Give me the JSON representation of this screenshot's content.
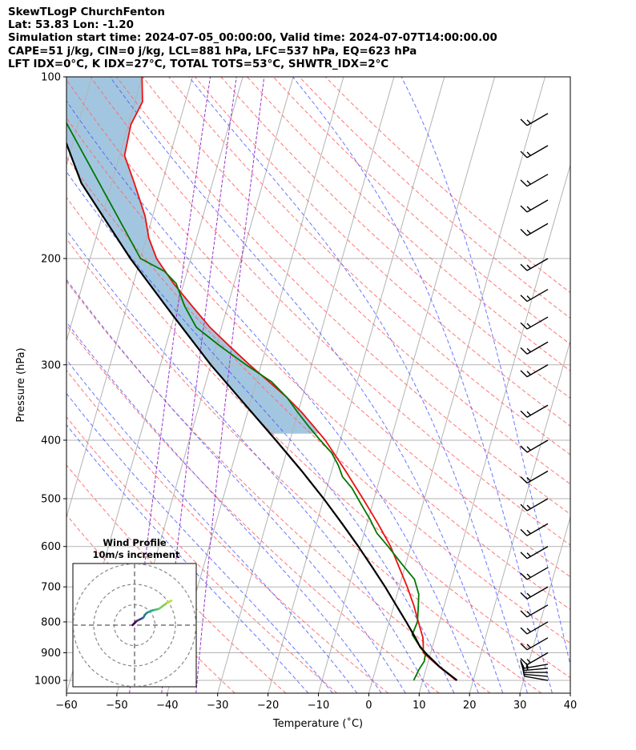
{
  "header": {
    "line1": "SkewTLogP ChurchFenton",
    "line2": "Lat: 53.83   Lon: -1.20",
    "line3": "Simulation start time: 2024-07-05_00:00:00, Valid time: 2024-07-07T14:00:00.00",
    "line4": "CAPE=51 j/kg, CIN=0 j/kg, LCL=881 hPa, LFC=537 hPa, EQ=623 hPa",
    "line5": "LFT IDX=0°C, K IDX=27°C, TOTAL TOTS=53°C, SHWTR_IDX=2°C"
  },
  "chart_data": {
    "type": "line",
    "title": "SkewTLogP ChurchFenton",
    "xlabel": "Temperature (˚C)",
    "ylabel": "Pressure (hPa)",
    "xlim": [
      -60,
      40
    ],
    "ylim": [
      1050,
      100
    ],
    "skew": 35,
    "xticks": [
      -60,
      -50,
      -40,
      -30,
      -20,
      -10,
      0,
      10,
      20,
      30,
      40
    ],
    "xtick_labels": [
      "−60",
      "−50",
      "−40",
      "−30",
      "−20",
      "−10",
      "0",
      "10",
      "20",
      "30",
      "40"
    ],
    "yticks": [
      1000,
      900,
      800,
      700,
      600,
      500,
      400,
      300,
      200,
      100
    ],
    "ytick_labels": [
      "1000",
      "900",
      "800",
      "700",
      "600",
      "500",
      "400",
      "300",
      "200",
      "100"
    ],
    "grid": true,
    "series": [
      {
        "name": "Temperature",
        "color": "#ee1111",
        "pressure": [
          1000,
          950,
          900,
          880,
          850,
          800,
          750,
          700,
          650,
          600,
          550,
          500,
          450,
          400,
          380,
          360,
          340,
          320,
          300,
          280,
          260,
          240,
          220,
          200,
          185,
          170,
          150,
          135,
          120,
          110,
          100
        ],
        "temperature": [
          16.6,
          12.5,
          8.5,
          8.2,
          7.6,
          5.8,
          3.9,
          1.6,
          -1.1,
          -4.0,
          -7.8,
          -12.2,
          -17.2,
          -23.0,
          -26.0,
          -29.2,
          -33.0,
          -37.5,
          -42.3,
          -47.2,
          -52.3,
          -57.0,
          -62.0,
          -66.8,
          -69.5,
          -71.5,
          -75.5,
          -79.0,
          -79.5,
          -78.5,
          -80.0
        ]
      },
      {
        "name": "Dewpoint",
        "color": "#007700",
        "pressure": [
          1000,
          960,
          930,
          900,
          870,
          840,
          800,
          760,
          720,
          680,
          640,
          600,
          570,
          540,
          510,
          480,
          460,
          440,
          420,
          400,
          380,
          360,
          340,
          320,
          300,
          280,
          260,
          240,
          220,
          210,
          200,
          100
        ],
        "temperature": [
          8.2,
          8.6,
          9.2,
          9.0,
          7.0,
          5.3,
          5.6,
          5.0,
          4.3,
          2.6,
          -0.9,
          -4.5,
          -7.5,
          -9.7,
          -12.3,
          -15.0,
          -17.5,
          -19.0,
          -21.0,
          -24.0,
          -27.0,
          -30.0,
          -33.0,
          -37.0,
          -43.0,
          -49.0,
          -55.0,
          -58.5,
          -61.5,
          -64.5,
          -70.0,
          -100.0
        ]
      },
      {
        "name": "Parcel",
        "color": "#000000",
        "pressure": [
          1000,
          950,
          900,
          881,
          850,
          800,
          750,
          700,
          650,
          600,
          550,
          500,
          450,
          400,
          350,
          300,
          250,
          200,
          150,
          100
        ],
        "temperature": [
          16.8,
          12.6,
          8.9,
          7.6,
          6.1,
          3.4,
          0.4,
          -2.8,
          -6.4,
          -10.4,
          -14.9,
          -20.0,
          -25.9,
          -32.8,
          -40.8,
          -50.0,
          -60.0,
          -72.0,
          -86.0,
          -100.0
        ]
      }
    ],
    "wind_barbs": {
      "pressure": [
        1000,
        985,
        970,
        955,
        940,
        900,
        850,
        800,
        750,
        700,
        650,
        600,
        550,
        500,
        450,
        400,
        350,
        300,
        275,
        250,
        225,
        200,
        175,
        160,
        145,
        130,
        115
      ],
      "speed_kt": [
        10,
        12,
        14,
        15,
        15,
        15,
        15,
        15,
        15,
        15,
        15,
        15,
        15,
        15,
        15,
        15,
        15,
        15,
        15,
        15,
        15,
        15,
        15,
        15,
        15,
        15,
        15
      ],
      "direction_deg": [
        280,
        275,
        270,
        265,
        260,
        240,
        240,
        240,
        240,
        240,
        240,
        240,
        240,
        240,
        240,
        240,
        240,
        240,
        240,
        240,
        240,
        240,
        240,
        240,
        240,
        240,
        240
      ]
    },
    "hodograph": {
      "title": "Wind Profile",
      "subtitle": "10m/s increment",
      "ring_step_ms": 10,
      "ring_count": 3,
      "u": [
        -1,
        0,
        1,
        2,
        3,
        4,
        4.5,
        5,
        6,
        7,
        8,
        10,
        12,
        14,
        16,
        18
      ],
      "v": [
        0,
        1,
        2,
        2.5,
        3,
        3.5,
        4,
        5,
        6,
        6.5,
        7,
        7.5,
        8,
        9.5,
        11,
        12
      ]
    },
    "annotations": {
      "cape_fill_color": "#a3c6e0",
      "dry_adiabat_color": "#ff6666",
      "moist_adiabat_color": "#4455ff",
      "mixing_ratio_color": "#9933cc"
    }
  }
}
